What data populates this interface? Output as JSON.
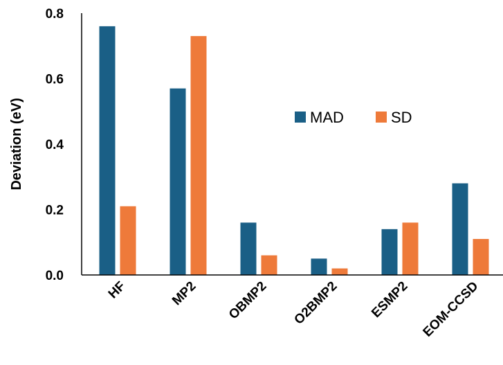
{
  "chart_data": {
    "type": "bar",
    "title": "",
    "xlabel": "",
    "ylabel": "Deviation (eV)",
    "categories": [
      "HF",
      "MP2",
      "OBMP2",
      "O2BMP2",
      "ESMP2",
      "EOM-CCSD"
    ],
    "series": [
      {
        "name": "MAD",
        "color": "#1a5f86",
        "values": [
          0.76,
          0.57,
          0.16,
          0.05,
          0.14,
          0.28
        ]
      },
      {
        "name": "SD",
        "color": "#ee7a3a",
        "values": [
          0.21,
          0.73,
          0.06,
          0.02,
          0.16,
          0.11
        ]
      }
    ],
    "ylim": [
      0,
      0.8
    ],
    "yticks": [
      "0.0",
      "0.2",
      "0.4",
      "0.6",
      "0.8"
    ],
    "grid": false,
    "legend": "inside-upper-right"
  }
}
